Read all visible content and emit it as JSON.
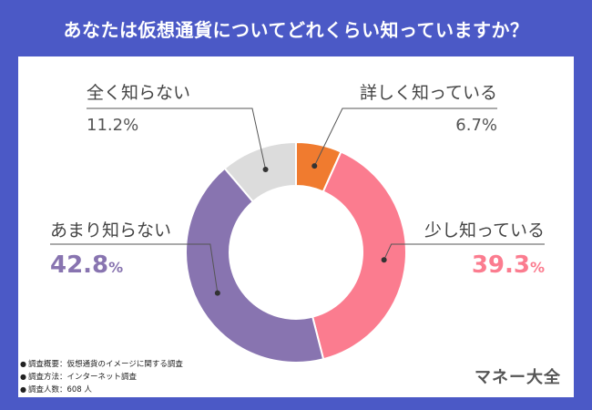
{
  "title": "あなたは仮想通貨についてどれくらい知っていますか？",
  "chart_data": {
    "type": "pie",
    "variant": "donut",
    "categories": [
      "詳しく知っている",
      "少し知っている",
      "あまり知らない",
      "全く知らない"
    ],
    "values": [
      6.7,
      39.3,
      42.8,
      11.2
    ],
    "unit": "%",
    "colors": [
      "#f07b2f",
      "#fb7c8f",
      "#8874b0",
      "#dcdcdc"
    ],
    "labels": {
      "very_familiar": {
        "name": "詳しく知っている",
        "pct": "6.7%"
      },
      "somewhat": {
        "name": "少し知っている",
        "pct_num": "39.3",
        "pct_unit": "%"
      },
      "not_much": {
        "name": "あまり知らない",
        "pct_num": "42.8",
        "pct_unit": "%"
      },
      "not_at_all": {
        "name": "全く知らない",
        "pct": "11.2%"
      }
    }
  },
  "notes": [
    "調査概要：仮想通貨のイメージに関する調査",
    "調査方法：インターネット調査",
    "調査人数：608 人"
  ],
  "brand": "マネー大全"
}
